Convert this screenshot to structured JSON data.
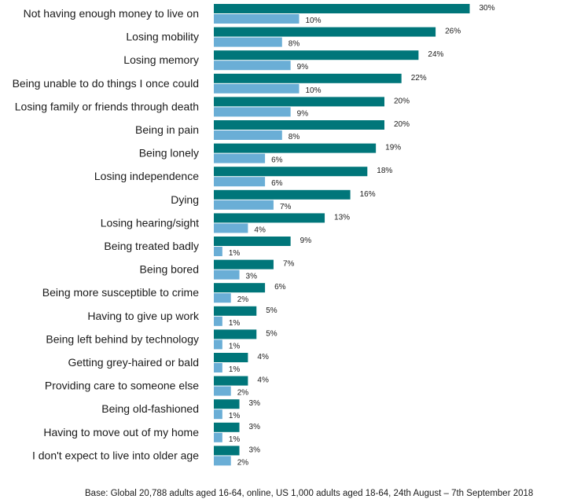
{
  "chart_data": {
    "type": "bar",
    "orientation": "horizontal",
    "categories": [
      "Not having enough money to live on",
      "Losing mobility",
      "Losing memory",
      "Being unable to do things I once could",
      "Losing family or friends through death",
      "Being in pain",
      "Being lonely",
      "Losing independence",
      "Dying",
      "Losing hearing/sight",
      "Being treated badly",
      "Being bored",
      "Being more susceptible to crime",
      "Having to give up work",
      "Being left behind by technology",
      "Getting grey-haired or bald",
      "Providing care to someone else",
      "Being old-fashioned",
      "Having to move out of my home",
      "I don't expect to live into older age"
    ],
    "series": [
      {
        "color": "#00767a",
        "values": [
          30,
          26,
          24,
          22,
          20,
          20,
          19,
          18,
          16,
          13,
          9,
          7,
          6,
          5,
          5,
          4,
          4,
          3,
          3,
          3
        ],
        "labels": [
          "30%",
          "26%",
          "24%",
          "22%",
          "20%",
          "20%",
          "19%",
          "18%",
          "16%",
          "13%",
          "9%",
          "7%",
          "6%",
          "5%",
          "5%",
          "4%",
          "4%",
          "3%",
          "3%",
          "3%"
        ]
      },
      {
        "color": "#6aaed6",
        "values": [
          10,
          8,
          9,
          10,
          9,
          8,
          6,
          6,
          7,
          4,
          1,
          3,
          2,
          1,
          1,
          1,
          2,
          1,
          1,
          2
        ],
        "labels": [
          "10%",
          "8%",
          "9%",
          "10%",
          "9%",
          "8%",
          "6%",
          "6%",
          "7%",
          "4%",
          "1%",
          "3%",
          "2%",
          "1%",
          "1%",
          "1%",
          "2%",
          "1%",
          "1%",
          "2%"
        ]
      }
    ],
    "xlim": [
      0,
      30
    ],
    "grid": false,
    "legend": "none",
    "note": "Base: Global 20,788 adults aged 16-64, online, US 1,000 adults aged 18-64, 24th August – 7th September 2018"
  }
}
